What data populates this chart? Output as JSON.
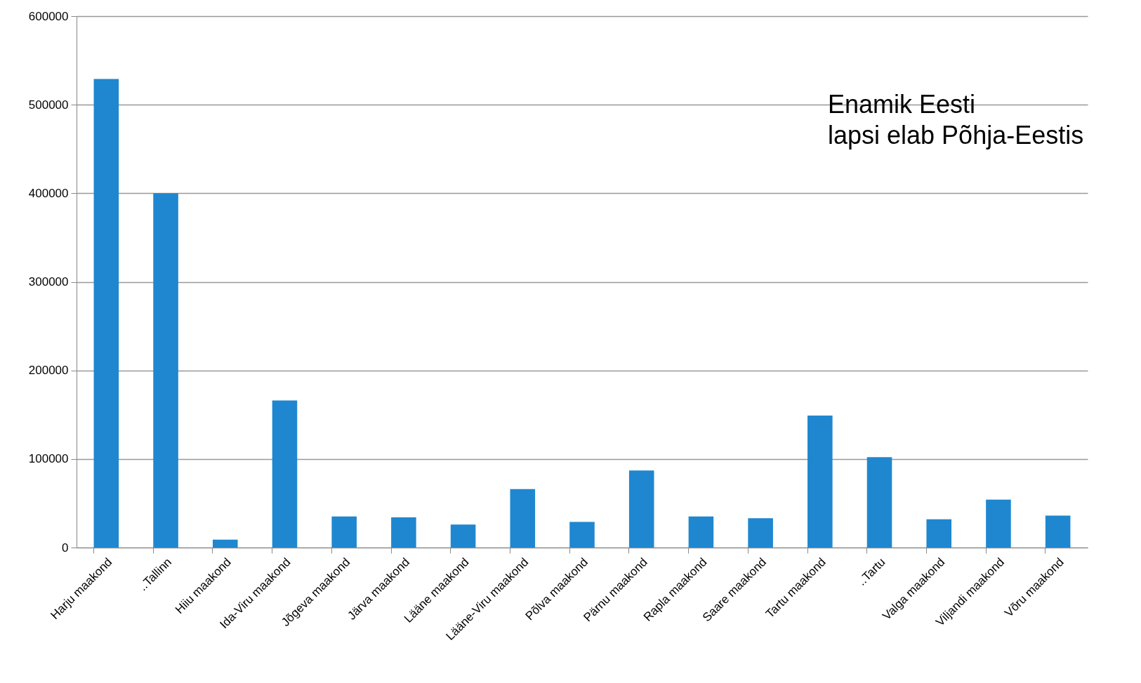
{
  "chart_data": {
    "type": "bar",
    "categories": [
      "Harju maakond",
      "..Tallinn",
      "Hiiu maakond",
      "Ida-Viru maakond",
      "Jõgeva maakond",
      "Järva maakond",
      "Lääne maakond",
      "Lääne-Viru maakond",
      "Põlva maakond",
      "Pärnu maakond",
      "Rapla maakond",
      "Saare maakond",
      "Tartu maakond",
      "..Tartu",
      "Valga maakond",
      "Viljandi maakond",
      "Võru maakond"
    ],
    "values": [
      529000,
      400000,
      9000,
      166000,
      35000,
      34000,
      26000,
      66000,
      29000,
      87000,
      35000,
      33000,
      149000,
      102000,
      32000,
      54000,
      36000
    ],
    "color": "#1f87d0",
    "ylim": [
      0,
      600000
    ],
    "yticks": [
      0,
      100000,
      200000,
      300000,
      400000,
      500000,
      600000
    ],
    "grid": "y",
    "annotations": [
      "Enamik Eesti\nlapsi elab Põhja-Eestis"
    ]
  }
}
